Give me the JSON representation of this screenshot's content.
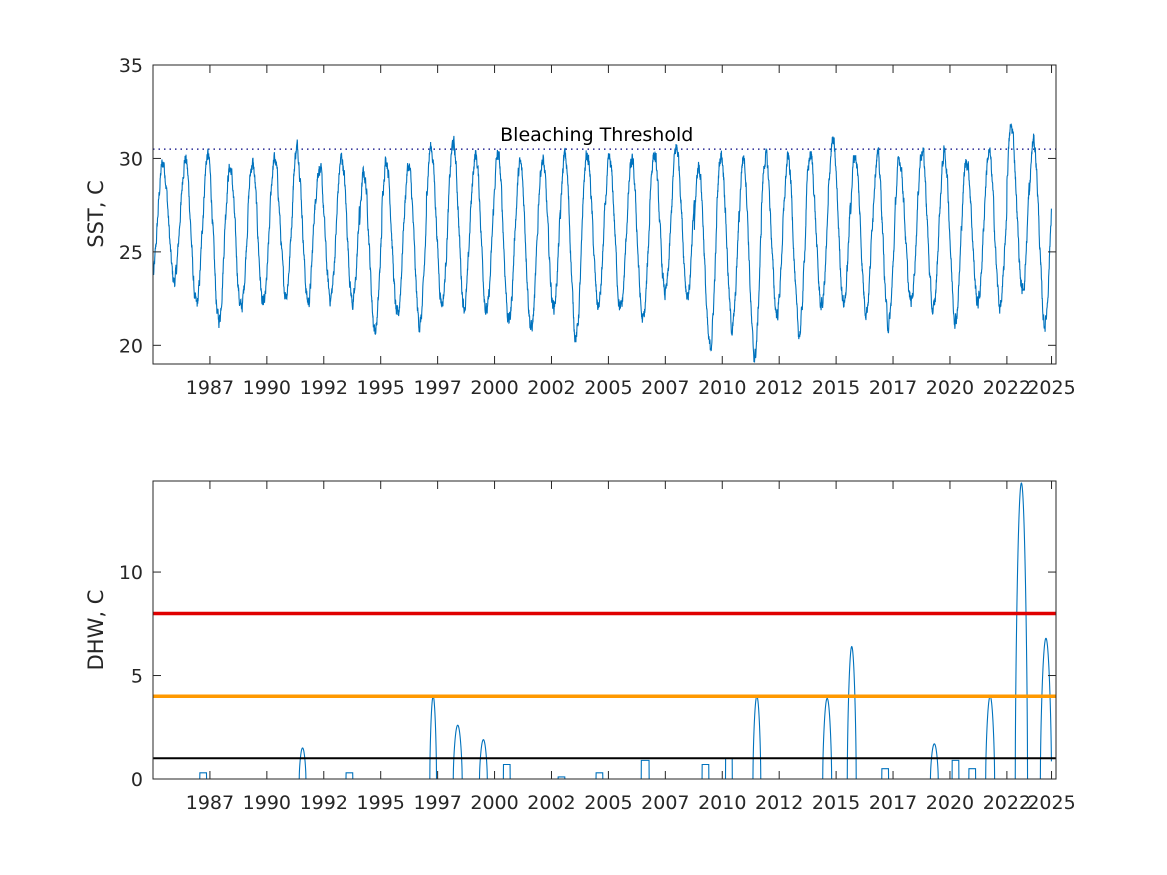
{
  "colors": {
    "sst_line": "#0072BD",
    "threshold_line": "#00007F",
    "alert_level2": "#E00000",
    "alert_level1": "#FF9900",
    "watch_level": "#000000",
    "axis": "#262626"
  },
  "chart_data": [
    {
      "type": "line",
      "ylabel": "SST, C",
      "xlim": [
        1984.75,
        2025.2
      ],
      "ylim": [
        19,
        35
      ],
      "yticks": [
        "20",
        "25",
        "30",
        "35"
      ],
      "xticks": [
        "1987",
        "1990",
        "1992",
        "1995",
        "1997",
        "2000",
        "2002",
        "2005",
        "2007",
        "2010",
        "2012",
        "2015",
        "2017",
        "2020",
        "2022",
        "2025"
      ],
      "xtick_values": [
        1987.3,
        1989.85,
        1992.4,
        1994.95,
        1997.5,
        2000.05,
        2002.6,
        2005.15,
        2007.7,
        2010.25,
        2012.8,
        2015.35,
        2017.9,
        2020.45,
        2023.0,
        2025.0
      ],
      "threshold": {
        "value": 30.5,
        "label": "Bleaching Threshold",
        "label_x": 2000.3
      },
      "series_seasonal": {
        "mean": 26.1,
        "amplitude": 3.7,
        "peak_phase": 0.2,
        "yearly_max": [
          30.0,
          30.3,
          30.5,
          29.8,
          30.0,
          30.2,
          30.9,
          29.8,
          30.3,
          29.5,
          30.3,
          29.9,
          30.9,
          31.1,
          30.5,
          30.5,
          30.0,
          30.2,
          30.5,
          30.5,
          30.1,
          30.1,
          30.5,
          30.9,
          30.0,
          30.6,
          30.5,
          30.4,
          30.3,
          30.5,
          31.2,
          30.5,
          30.5,
          30.2,
          30.8,
          30.6,
          30.2,
          30.6,
          32.0,
          31.3
        ],
        "yearly_min": [
          23.2,
          21.8,
          21.0,
          21.7,
          21.8,
          22.5,
          22.0,
          22.3,
          22.0,
          20.5,
          21.2,
          20.8,
          22.0,
          21.8,
          21.5,
          21.0,
          20.6,
          21.8,
          20.1,
          21.8,
          21.6,
          21.0,
          22.5,
          22.4,
          19.5,
          20.6,
          19.0,
          21.4,
          20.3,
          21.8,
          22.0,
          21.6,
          20.8,
          22.0,
          21.5,
          21.1,
          22.0,
          21.8,
          22.6,
          20.8
        ]
      }
    },
    {
      "type": "line",
      "ylabel": "DHW, C",
      "xlim": [
        1984.75,
        2025.2
      ],
      "ylim": [
        0,
        14.4
      ],
      "yticks": [
        "0",
        "5",
        "10"
      ],
      "xticks": [
        "1987",
        "1990",
        "1992",
        "1995",
        "1997",
        "2000",
        "2002",
        "2005",
        "2007",
        "2010",
        "2012",
        "2015",
        "2017",
        "2020",
        "2022",
        "2025"
      ],
      "xtick_values": [
        1987.3,
        1989.85,
        1992.4,
        1994.95,
        1997.5,
        2000.05,
        2002.6,
        2005.15,
        2007.7,
        2010.25,
        2012.8,
        2015.35,
        2017.9,
        2020.45,
        2023.0,
        2025.0
      ],
      "reference_lines": [
        {
          "value": 8,
          "color": "#E00000"
        },
        {
          "value": 4,
          "color": "#FF9900"
        },
        {
          "value": 1,
          "color": "#000000"
        }
      ],
      "events": [
        {
          "x": 1987.0,
          "peak": 0.3,
          "width": 0.3
        },
        {
          "x": 1991.45,
          "peak": 1.5,
          "width": 0.3
        },
        {
          "x": 1993.55,
          "peak": 0.3,
          "width": 0.3
        },
        {
          "x": 1997.3,
          "peak": 4.0,
          "width": 0.3
        },
        {
          "x": 1998.4,
          "peak": 2.6,
          "width": 0.4
        },
        {
          "x": 1999.55,
          "peak": 1.9,
          "width": 0.35
        },
        {
          "x": 2000.6,
          "peak": 0.7,
          "width": 0.3
        },
        {
          "x": 2003.05,
          "peak": 0.1,
          "width": 0.3
        },
        {
          "x": 2004.75,
          "peak": 0.3,
          "width": 0.3
        },
        {
          "x": 2006.8,
          "peak": 0.9,
          "width": 0.35
        },
        {
          "x": 2009.5,
          "peak": 0.7,
          "width": 0.3
        },
        {
          "x": 2010.55,
          "peak": 1.0,
          "width": 0.3
        },
        {
          "x": 2011.8,
          "peak": 4.0,
          "width": 0.35
        },
        {
          "x": 2014.95,
          "peak": 3.9,
          "width": 0.4
        },
        {
          "x": 2016.05,
          "peak": 6.4,
          "width": 0.4
        },
        {
          "x": 2017.55,
          "peak": 0.5,
          "width": 0.3
        },
        {
          "x": 2019.75,
          "peak": 1.7,
          "width": 0.35
        },
        {
          "x": 2020.7,
          "peak": 0.9,
          "width": 0.3
        },
        {
          "x": 2021.45,
          "peak": 0.5,
          "width": 0.3
        },
        {
          "x": 2022.25,
          "peak": 4.0,
          "width": 0.4
        },
        {
          "x": 2023.65,
          "peak": 14.3,
          "width": 0.55
        },
        {
          "x": 2024.75,
          "peak": 6.8,
          "width": 0.5
        }
      ]
    }
  ]
}
